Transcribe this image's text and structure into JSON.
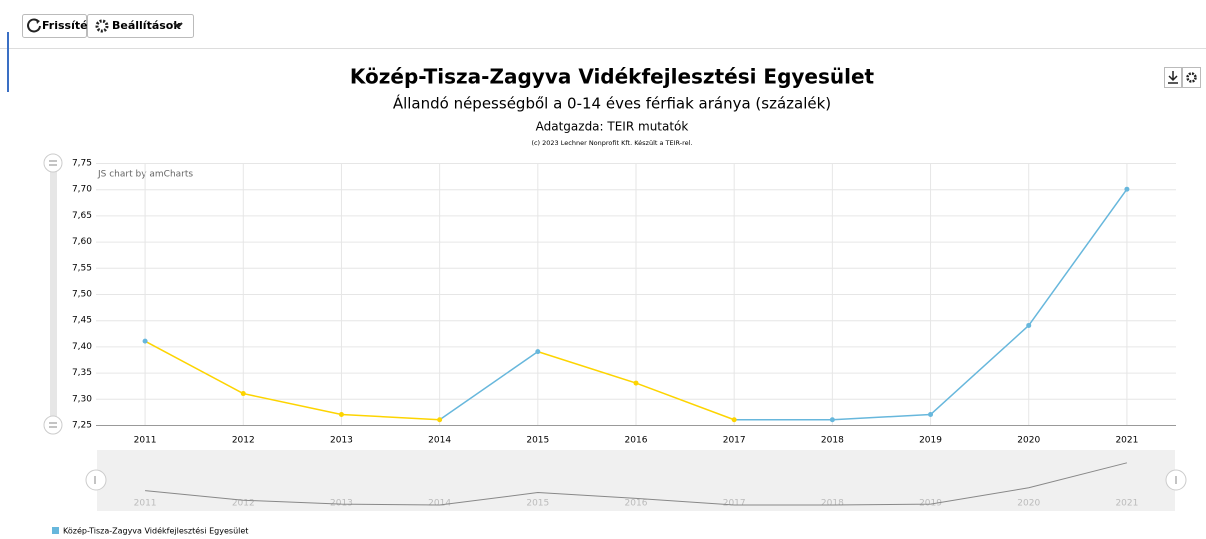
{
  "toolbar": {
    "refresh": "Frissítés",
    "settings": "Beállítások"
  },
  "chart_data": {
    "type": "line",
    "title": "Közép-Tisza-Zagyva Vidékfejlesztési Egyesület",
    "subtitle": "Állandó népességből a 0-14 éves férfiak aránya (százalék)",
    "source": "Adatgazda: TEIR mutatók",
    "copyright": "(c) 2023 Lechner Nonprofit Kft. Készült a TEIR-rel.",
    "credit": "JS chart by amCharts",
    "categories": [
      "2011",
      "2012",
      "2013",
      "2014",
      "2015",
      "2016",
      "2017",
      "2018",
      "2019",
      "2020",
      "2021"
    ],
    "series": [
      {
        "name": "Közép-Tisza-Zagyva Vidékfejlesztési Egyesület",
        "color": "#67b7dc",
        "down_color": "#fdd400",
        "values": [
          7.41,
          7.31,
          7.27,
          7.26,
          7.39,
          7.33,
          7.26,
          7.26,
          7.27,
          7.44,
          7.7
        ]
      }
    ],
    "ylim": [
      7.25,
      7.75
    ],
    "yticks": [
      {
        "value": 7.25,
        "label": "7,25"
      },
      {
        "value": 7.3,
        "label": "7,30"
      },
      {
        "value": 7.35,
        "label": "7,35"
      },
      {
        "value": 7.4,
        "label": "7,40"
      },
      {
        "value": 7.45,
        "label": "7,45"
      },
      {
        "value": 7.5,
        "label": "7,50"
      },
      {
        "value": 7.55,
        "label": "7,55"
      },
      {
        "value": 7.6,
        "label": "7,60"
      },
      {
        "value": 7.65,
        "label": "7,65"
      },
      {
        "value": 7.7,
        "label": "7,70"
      },
      {
        "value": 7.75,
        "label": "7,75"
      }
    ],
    "grid": true
  }
}
